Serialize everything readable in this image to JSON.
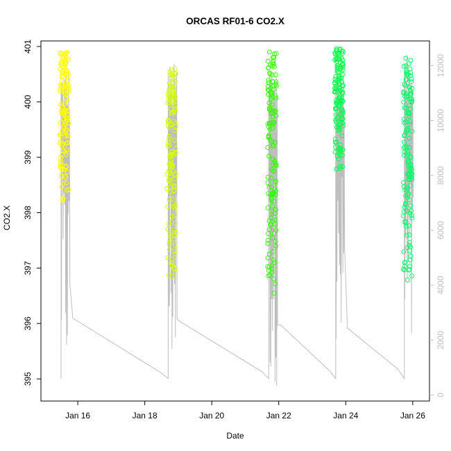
{
  "chart_data": {
    "type": "scatter",
    "title": "ORCAS RF01-6 CO2.X",
    "xlabel": "Date",
    "ylabel": "CO2.X",
    "x_ticks": [
      "Jan 16",
      "Jan 18",
      "Jan 20",
      "Jan 22",
      "Jan 24",
      "Jan 26"
    ],
    "x_tick_days": [
      16,
      18,
      20,
      22,
      24,
      26
    ],
    "xlim_days": [
      14.9,
      26.5
    ],
    "y_ticks": [
      395,
      396,
      397,
      398,
      399,
      400,
      401
    ],
    "ylim": [
      394.6,
      401.1
    ],
    "y2_ticks": [
      0,
      2000,
      4000,
      6000,
      8000,
      10000,
      12000
    ],
    "y2lim": [
      -220,
      12900
    ],
    "colors": {
      "axis": "#000000",
      "y2_axis": "#bebebe",
      "altitude_line": "#bebebe",
      "series": [
        "#FFFF00",
        "#D4FF00",
        "#80FF00",
        "#33FF00",
        "#00FF4D",
        "#00FF66"
      ]
    },
    "series": [
      {
        "flight_day": 15.55,
        "co2_range": [
          397.0,
          400.9
        ],
        "alt_peak": 12000
      },
      {
        "flight_day": 18.75,
        "co2_range": [
          395.1,
          400.6
        ],
        "alt_peak": 12100
      },
      {
        "flight_day": 21.75,
        "co2_range": [
          394.6,
          401.0
        ],
        "alt_peak": 12200
      },
      {
        "flight_day": 23.75,
        "co2_range": [
          397.8,
          401.0
        ],
        "alt_peak": 12300
      },
      {
        "flight_day": 25.8,
        "co2_range": [
          395.0,
          400.8
        ],
        "alt_peak": 12400
      }
    ]
  }
}
